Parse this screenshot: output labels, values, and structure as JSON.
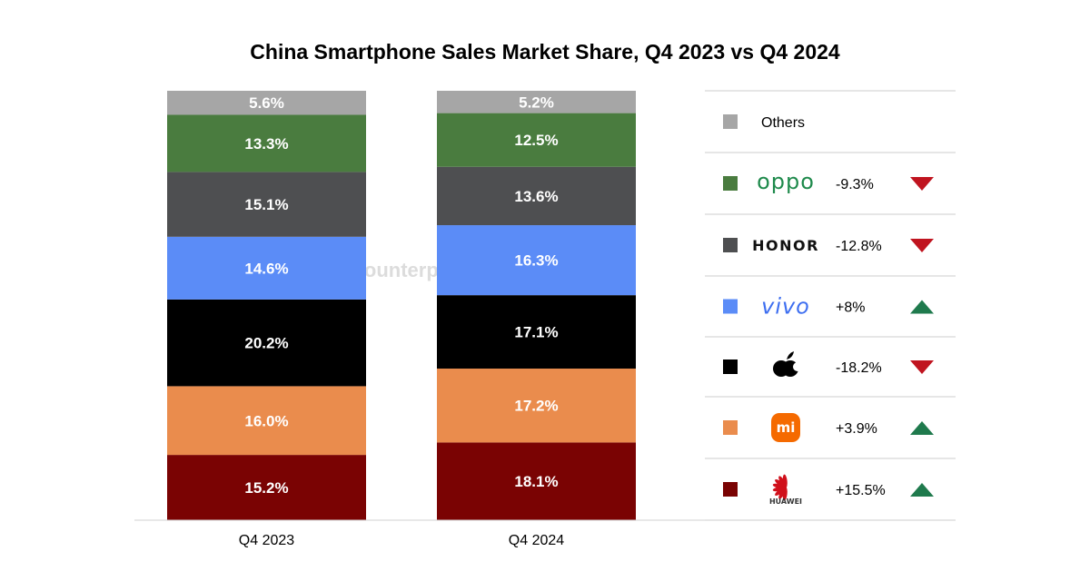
{
  "chart_data": {
    "type": "bar",
    "stacked": true,
    "title": "China Smartphone Sales Market Share, Q4 2023 vs Q4 2024",
    "categories": [
      "Q4 2023",
      "Q4 2024"
    ],
    "series": [
      {
        "name": "HUAWEI",
        "key": "huawei",
        "color": "#7a0303",
        "values": [
          15.2,
          18.1
        ],
        "labels": [
          "15.2%",
          "18.1%"
        ],
        "yoy": "+15.5%",
        "trend": "up"
      },
      {
        "name": "Xiaomi",
        "key": "xiaomi",
        "color": "#ea8c4d",
        "values": [
          16.0,
          17.2
        ],
        "labels": [
          "16.0%",
          "17.2%"
        ],
        "yoy": "+3.9%",
        "trend": "up"
      },
      {
        "name": "Apple",
        "key": "apple",
        "color": "#000000",
        "values": [
          20.2,
          17.1
        ],
        "labels": [
          "20.2%",
          "17.1%"
        ],
        "yoy": "-18.2%",
        "trend": "down"
      },
      {
        "name": "vivo",
        "key": "vivo",
        "color": "#5b8cf7",
        "values": [
          14.6,
          16.3
        ],
        "labels": [
          "14.6%",
          "16.3%"
        ],
        "yoy": "+8%",
        "trend": "up"
      },
      {
        "name": "HONOR",
        "key": "honor",
        "color": "#4e4f51",
        "values": [
          15.1,
          13.6
        ],
        "labels": [
          "15.1%",
          "13.6%"
        ],
        "yoy": "-12.8%",
        "trend": "down"
      },
      {
        "name": "OPPO",
        "key": "oppo",
        "color": "#4a7c3f",
        "values": [
          13.3,
          12.5
        ],
        "labels": [
          "13.3%",
          "12.5%"
        ],
        "yoy": "-9.3%",
        "trend": "down"
      },
      {
        "name": "Others",
        "key": "others",
        "color": "#a6a6a6",
        "values": [
          5.6,
          5.2
        ],
        "labels": [
          "5.6%",
          "5.2%"
        ],
        "yoy": "",
        "trend": ""
      }
    ],
    "ylim": [
      0,
      100
    ],
    "grid": false,
    "legend_position": "right"
  },
  "legend": {
    "others_label": "Others",
    "oppo_wordmark": "oppo",
    "honor_wordmark": "HONOR",
    "vivo_wordmark": "vivo",
    "mi_wordmark": "mi",
    "huawei_wordmark": "HUAWEI"
  },
  "colors": {
    "trend_up": "#1f7a4d",
    "trend_down": "#c0141f",
    "divider": "#cccccc",
    "oppo_brand": "#1f8a4c",
    "vivo_brand": "#3d6ef0",
    "honor_brand": "#111111",
    "xiaomi_brand": "#f56a00",
    "huawei_brand": "#d0101b",
    "watermark": "#d9d9d9"
  },
  "icons": {
    "trend_up": "triangle-up-icon",
    "trend_down": "triangle-down-icon",
    "apple": "apple-logo-icon",
    "huawei": "huawei-petal-logo-icon",
    "xiaomi": "xiaomi-mi-logo-icon",
    "watermark": "counterpoint-logo-icon"
  },
  "watermark": {
    "text": "Counterpoint"
  }
}
